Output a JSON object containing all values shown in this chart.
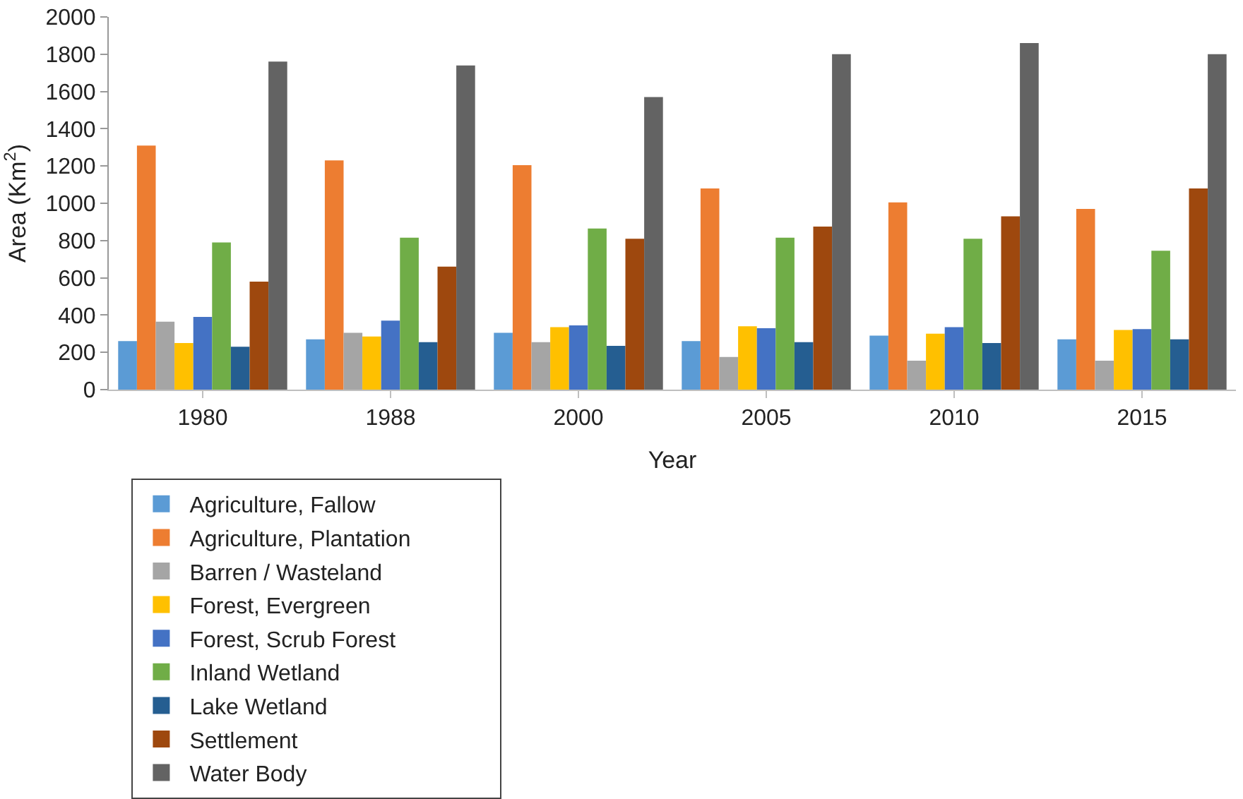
{
  "chart_data": {
    "type": "bar",
    "xlabel": "Year",
    "ylabel": "Area (Km$^{2}$)",
    "categories": [
      "1980",
      "1988",
      "2000",
      "2005",
      "2010",
      "2015"
    ],
    "series": [
      {
        "name": "Agriculture, Fallow",
        "color": "#5b9bd5",
        "values": [
          260,
          270,
          305,
          260,
          290,
          270
        ]
      },
      {
        "name": "Agriculture, Plantation",
        "color": "#ed7d31",
        "values": [
          1310,
          1230,
          1205,
          1080,
          1005,
          970
        ]
      },
      {
        "name": "Barren / Wasteland",
        "color": "#a5a5a5",
        "values": [
          365,
          305,
          255,
          175,
          155,
          155
        ]
      },
      {
        "name": "Forest, Evergreen",
        "color": "#ffc000",
        "values": [
          250,
          285,
          335,
          340,
          300,
          320
        ]
      },
      {
        "name": "Forest, Scrub Forest",
        "color": "#4472c4",
        "values": [
          390,
          370,
          345,
          330,
          335,
          325
        ]
      },
      {
        "name": "Inland Wetland",
        "color": "#70ad47",
        "values": [
          790,
          815,
          865,
          815,
          810,
          745
        ]
      },
      {
        "name": "Lake Wetland",
        "color": "#255e91",
        "values": [
          230,
          255,
          235,
          255,
          250,
          270
        ]
      },
      {
        "name": "Settlement",
        "color": "#9e480e",
        "values": [
          580,
          660,
          810,
          875,
          930,
          1080
        ]
      },
      {
        "name": "Water Body",
        "color": "#636363",
        "values": [
          1760,
          1740,
          1570,
          1800,
          1860,
          1800
        ]
      }
    ],
    "ylim": [
      0,
      2000
    ],
    "yticks": [
      0,
      200,
      400,
      600,
      800,
      1000,
      1200,
      1400,
      1600,
      1800,
      2000
    ],
    "grid": false,
    "legend": "bottom"
  }
}
